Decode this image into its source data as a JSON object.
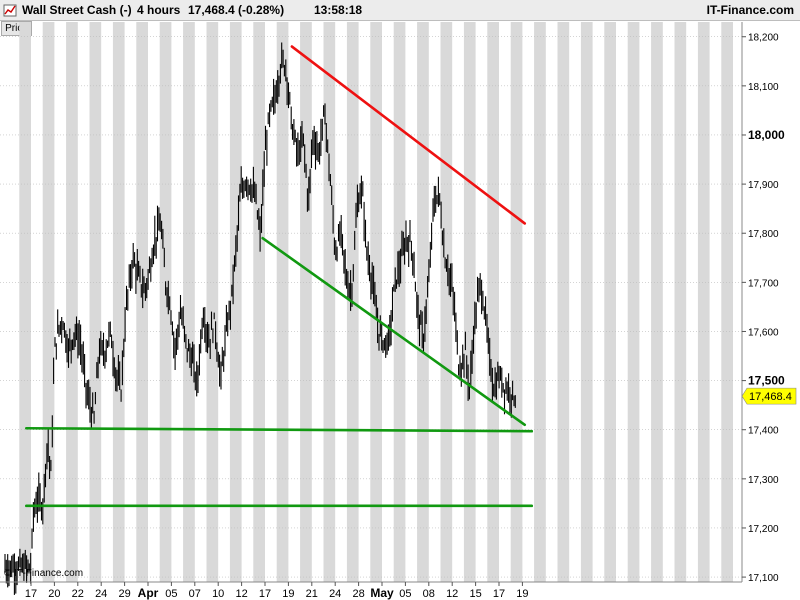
{
  "header": {
    "instrument": "Wall Street Cash (-)",
    "timeframe": "4 hours",
    "last_change": "17,468.4 (-0.28%)",
    "time": "13:58:18",
    "brand": "IT-Finance.com"
  },
  "price_tab": "Price",
  "copyright": "© IT-Finance.com",
  "colors": {
    "resistance": "#ee1111",
    "support": "#119911",
    "candle": "#000000",
    "band": "#d9d9d9",
    "last_tag_bg": "#ffff00"
  },
  "chart_data": {
    "type": "line",
    "ylim": [
      17090,
      18230
    ],
    "y_ticks": [
      {
        "v": 17100,
        "label": "17,100",
        "major": false
      },
      {
        "v": 17200,
        "label": "17,200",
        "major": false
      },
      {
        "v": 17300,
        "label": "17,300",
        "major": false
      },
      {
        "v": 17400,
        "label": "17,400",
        "major": false
      },
      {
        "v": 17500,
        "label": "17,500",
        "major": true
      },
      {
        "v": 17600,
        "label": "17,600",
        "major": false
      },
      {
        "v": 17700,
        "label": "17,700",
        "major": false
      },
      {
        "v": 17800,
        "label": "17,800",
        "major": false
      },
      {
        "v": 17900,
        "label": "17,900",
        "major": false
      },
      {
        "v": 18000,
        "label": "18,000",
        "major": true
      },
      {
        "v": 18100,
        "label": "18,100",
        "major": false
      },
      {
        "v": 18200,
        "label": "18,200",
        "major": false
      }
    ],
    "x_ticks": [
      {
        "i": 0,
        "label": "17",
        "major": false
      },
      {
        "i": 1,
        "label": "20",
        "major": false
      },
      {
        "i": 2,
        "label": "22",
        "major": false
      },
      {
        "i": 3,
        "label": "24",
        "major": false
      },
      {
        "i": 4,
        "label": "29",
        "major": false
      },
      {
        "i": 5,
        "label": "Apr",
        "major": true
      },
      {
        "i": 6,
        "label": "05",
        "major": false
      },
      {
        "i": 7,
        "label": "07",
        "major": false
      },
      {
        "i": 8,
        "label": "10",
        "major": false
      },
      {
        "i": 9,
        "label": "12",
        "major": false
      },
      {
        "i": 10,
        "label": "17",
        "major": false
      },
      {
        "i": 11,
        "label": "19",
        "major": false
      },
      {
        "i": 12,
        "label": "21",
        "major": false
      },
      {
        "i": 13,
        "label": "24",
        "major": false
      },
      {
        "i": 14,
        "label": "28",
        "major": false
      },
      {
        "i": 15,
        "label": "May",
        "major": true
      },
      {
        "i": 16,
        "label": "05",
        "major": false
      },
      {
        "i": 17,
        "label": "08",
        "major": false
      },
      {
        "i": 18,
        "label": "12",
        "major": false
      },
      {
        "i": 19,
        "label": "15",
        "major": false
      },
      {
        "i": 20,
        "label": "17",
        "major": false
      },
      {
        "i": 21,
        "label": "19",
        "major": false
      }
    ],
    "price_path": [
      [
        0.0,
        17120
      ],
      [
        0.1,
        17230
      ],
      [
        0.3,
        17260
      ],
      [
        0.5,
        17245
      ],
      [
        0.7,
        17380
      ],
      [
        0.85,
        17310
      ],
      [
        1.0,
        17560
      ],
      [
        1.15,
        17600
      ],
      [
        1.35,
        17625
      ],
      [
        1.6,
        17560
      ],
      [
        1.85,
        17600
      ],
      [
        2.1,
        17580
      ],
      [
        2.4,
        17470
      ],
      [
        2.7,
        17420
      ],
      [
        2.9,
        17560
      ],
      [
        3.15,
        17560
      ],
      [
        3.4,
        17600
      ],
      [
        3.6,
        17520
      ],
      [
        3.85,
        17480
      ],
      [
        4.05,
        17640
      ],
      [
        4.35,
        17750
      ],
      [
        4.6,
        17710
      ],
      [
        4.85,
        17680
      ],
      [
        5.05,
        17720
      ],
      [
        5.3,
        17790
      ],
      [
        5.55,
        17820
      ],
      [
        5.75,
        17700
      ],
      [
        5.95,
        17660
      ],
      [
        6.15,
        17560
      ],
      [
        6.4,
        17640
      ],
      [
        6.65,
        17570
      ],
      [
        6.9,
        17540
      ],
      [
        7.1,
        17490
      ],
      [
        7.35,
        17640
      ],
      [
        7.6,
        17580
      ],
      [
        7.85,
        17620
      ],
      [
        8.1,
        17500
      ],
      [
        8.35,
        17600
      ],
      [
        8.55,
        17660
      ],
      [
        8.75,
        17760
      ],
      [
        8.95,
        17880
      ],
      [
        9.2,
        17910
      ],
      [
        9.45,
        17890
      ],
      [
        9.6,
        17870
      ],
      [
        9.8,
        17790
      ],
      [
        10.0,
        17960
      ],
      [
        10.2,
        18040
      ],
      [
        10.45,
        18080
      ],
      [
        10.7,
        18150
      ],
      [
        10.9,
        18140
      ],
      [
        11.15,
        18020
      ],
      [
        11.4,
        17960
      ],
      [
        11.65,
        17990
      ],
      [
        11.85,
        17860
      ],
      [
        12.05,
        18000
      ],
      [
        12.3,
        17960
      ],
      [
        12.55,
        18050
      ],
      [
        12.8,
        17900
      ],
      [
        13.0,
        17760
      ],
      [
        13.25,
        17800
      ],
      [
        13.5,
        17700
      ],
      [
        13.7,
        17680
      ],
      [
        13.95,
        17860
      ],
      [
        14.15,
        17890
      ],
      [
        14.35,
        17760
      ],
      [
        14.6,
        17700
      ],
      [
        14.8,
        17610
      ],
      [
        15.05,
        17580
      ],
      [
        15.3,
        17580
      ],
      [
        15.55,
        17700
      ],
      [
        15.8,
        17740
      ],
      [
        16.05,
        17790
      ],
      [
        16.3,
        17770
      ],
      [
        16.5,
        17650
      ],
      [
        16.75,
        17580
      ],
      [
        17.0,
        17700
      ],
      [
        17.2,
        17860
      ],
      [
        17.45,
        17880
      ],
      [
        17.65,
        17760
      ],
      [
        17.85,
        17720
      ],
      [
        18.05,
        17670
      ],
      [
        18.3,
        17520
      ],
      [
        18.55,
        17560
      ],
      [
        18.75,
        17480
      ],
      [
        18.95,
        17620
      ],
      [
        19.2,
        17700
      ],
      [
        19.4,
        17640
      ],
      [
        19.6,
        17540
      ],
      [
        19.8,
        17480
      ],
      [
        20.0,
        17510
      ],
      [
        20.2,
        17490
      ],
      [
        20.45,
        17480
      ],
      [
        20.7,
        17468
      ]
    ],
    "trendlines": [
      {
        "kind": "resistance",
        "from": [
          11.15,
          18180
        ],
        "to": [
          21.1,
          17820
        ]
      },
      {
        "kind": "support",
        "from": [
          9.9,
          17790
        ],
        "to": [
          21.1,
          17410
        ]
      },
      {
        "kind": "support",
        "from": [
          -0.2,
          17403
        ],
        "to": [
          21.4,
          17397
        ]
      },
      {
        "kind": "support",
        "from": [
          -0.2,
          17245
        ],
        "to": [
          21.4,
          17245
        ]
      }
    ],
    "last_price": {
      "value": 17468.4,
      "label": "17,468.4"
    }
  }
}
